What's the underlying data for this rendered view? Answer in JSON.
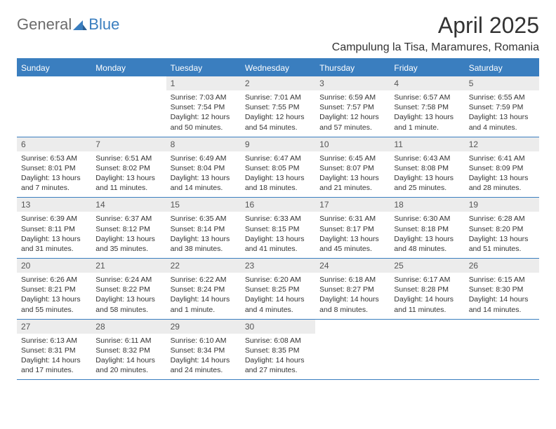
{
  "logo": {
    "part1": "General",
    "part2": "Blue"
  },
  "title": "April 2025",
  "location": "Campulung la Tisa, Maramures, Romania",
  "colors": {
    "accent": "#3a7ebf",
    "daybar": "#ececec",
    "text": "#333333",
    "logo_gray": "#6b6b6b"
  },
  "fontsizes": {
    "title": 32,
    "subtitle": 16,
    "weekday": 12,
    "daynum": 12,
    "body": 10.5,
    "logo": 22
  },
  "weekdays": [
    "Sunday",
    "Monday",
    "Tuesday",
    "Wednesday",
    "Thursday",
    "Friday",
    "Saturday"
  ],
  "weeks": [
    [
      null,
      null,
      {
        "day": "1",
        "sunrise": "Sunrise: 7:03 AM",
        "sunset": "Sunset: 7:54 PM",
        "daylight": "Daylight: 12 hours and 50 minutes."
      },
      {
        "day": "2",
        "sunrise": "Sunrise: 7:01 AM",
        "sunset": "Sunset: 7:55 PM",
        "daylight": "Daylight: 12 hours and 54 minutes."
      },
      {
        "day": "3",
        "sunrise": "Sunrise: 6:59 AM",
        "sunset": "Sunset: 7:57 PM",
        "daylight": "Daylight: 12 hours and 57 minutes."
      },
      {
        "day": "4",
        "sunrise": "Sunrise: 6:57 AM",
        "sunset": "Sunset: 7:58 PM",
        "daylight": "Daylight: 13 hours and 1 minute."
      },
      {
        "day": "5",
        "sunrise": "Sunrise: 6:55 AM",
        "sunset": "Sunset: 7:59 PM",
        "daylight": "Daylight: 13 hours and 4 minutes."
      }
    ],
    [
      {
        "day": "6",
        "sunrise": "Sunrise: 6:53 AM",
        "sunset": "Sunset: 8:01 PM",
        "daylight": "Daylight: 13 hours and 7 minutes."
      },
      {
        "day": "7",
        "sunrise": "Sunrise: 6:51 AM",
        "sunset": "Sunset: 8:02 PM",
        "daylight": "Daylight: 13 hours and 11 minutes."
      },
      {
        "day": "8",
        "sunrise": "Sunrise: 6:49 AM",
        "sunset": "Sunset: 8:04 PM",
        "daylight": "Daylight: 13 hours and 14 minutes."
      },
      {
        "day": "9",
        "sunrise": "Sunrise: 6:47 AM",
        "sunset": "Sunset: 8:05 PM",
        "daylight": "Daylight: 13 hours and 18 minutes."
      },
      {
        "day": "10",
        "sunrise": "Sunrise: 6:45 AM",
        "sunset": "Sunset: 8:07 PM",
        "daylight": "Daylight: 13 hours and 21 minutes."
      },
      {
        "day": "11",
        "sunrise": "Sunrise: 6:43 AM",
        "sunset": "Sunset: 8:08 PM",
        "daylight": "Daylight: 13 hours and 25 minutes."
      },
      {
        "day": "12",
        "sunrise": "Sunrise: 6:41 AM",
        "sunset": "Sunset: 8:09 PM",
        "daylight": "Daylight: 13 hours and 28 minutes."
      }
    ],
    [
      {
        "day": "13",
        "sunrise": "Sunrise: 6:39 AM",
        "sunset": "Sunset: 8:11 PM",
        "daylight": "Daylight: 13 hours and 31 minutes."
      },
      {
        "day": "14",
        "sunrise": "Sunrise: 6:37 AM",
        "sunset": "Sunset: 8:12 PM",
        "daylight": "Daylight: 13 hours and 35 minutes."
      },
      {
        "day": "15",
        "sunrise": "Sunrise: 6:35 AM",
        "sunset": "Sunset: 8:14 PM",
        "daylight": "Daylight: 13 hours and 38 minutes."
      },
      {
        "day": "16",
        "sunrise": "Sunrise: 6:33 AM",
        "sunset": "Sunset: 8:15 PM",
        "daylight": "Daylight: 13 hours and 41 minutes."
      },
      {
        "day": "17",
        "sunrise": "Sunrise: 6:31 AM",
        "sunset": "Sunset: 8:17 PM",
        "daylight": "Daylight: 13 hours and 45 minutes."
      },
      {
        "day": "18",
        "sunrise": "Sunrise: 6:30 AM",
        "sunset": "Sunset: 8:18 PM",
        "daylight": "Daylight: 13 hours and 48 minutes."
      },
      {
        "day": "19",
        "sunrise": "Sunrise: 6:28 AM",
        "sunset": "Sunset: 8:20 PM",
        "daylight": "Daylight: 13 hours and 51 minutes."
      }
    ],
    [
      {
        "day": "20",
        "sunrise": "Sunrise: 6:26 AM",
        "sunset": "Sunset: 8:21 PM",
        "daylight": "Daylight: 13 hours and 55 minutes."
      },
      {
        "day": "21",
        "sunrise": "Sunrise: 6:24 AM",
        "sunset": "Sunset: 8:22 PM",
        "daylight": "Daylight: 13 hours and 58 minutes."
      },
      {
        "day": "22",
        "sunrise": "Sunrise: 6:22 AM",
        "sunset": "Sunset: 8:24 PM",
        "daylight": "Daylight: 14 hours and 1 minute."
      },
      {
        "day": "23",
        "sunrise": "Sunrise: 6:20 AM",
        "sunset": "Sunset: 8:25 PM",
        "daylight": "Daylight: 14 hours and 4 minutes."
      },
      {
        "day": "24",
        "sunrise": "Sunrise: 6:18 AM",
        "sunset": "Sunset: 8:27 PM",
        "daylight": "Daylight: 14 hours and 8 minutes."
      },
      {
        "day": "25",
        "sunrise": "Sunrise: 6:17 AM",
        "sunset": "Sunset: 8:28 PM",
        "daylight": "Daylight: 14 hours and 11 minutes."
      },
      {
        "day": "26",
        "sunrise": "Sunrise: 6:15 AM",
        "sunset": "Sunset: 8:30 PM",
        "daylight": "Daylight: 14 hours and 14 minutes."
      }
    ],
    [
      {
        "day": "27",
        "sunrise": "Sunrise: 6:13 AM",
        "sunset": "Sunset: 8:31 PM",
        "daylight": "Daylight: 14 hours and 17 minutes."
      },
      {
        "day": "28",
        "sunrise": "Sunrise: 6:11 AM",
        "sunset": "Sunset: 8:32 PM",
        "daylight": "Daylight: 14 hours and 20 minutes."
      },
      {
        "day": "29",
        "sunrise": "Sunrise: 6:10 AM",
        "sunset": "Sunset: 8:34 PM",
        "daylight": "Daylight: 14 hours and 24 minutes."
      },
      {
        "day": "30",
        "sunrise": "Sunrise: 6:08 AM",
        "sunset": "Sunset: 8:35 PM",
        "daylight": "Daylight: 14 hours and 27 minutes."
      },
      null,
      null,
      null
    ]
  ]
}
